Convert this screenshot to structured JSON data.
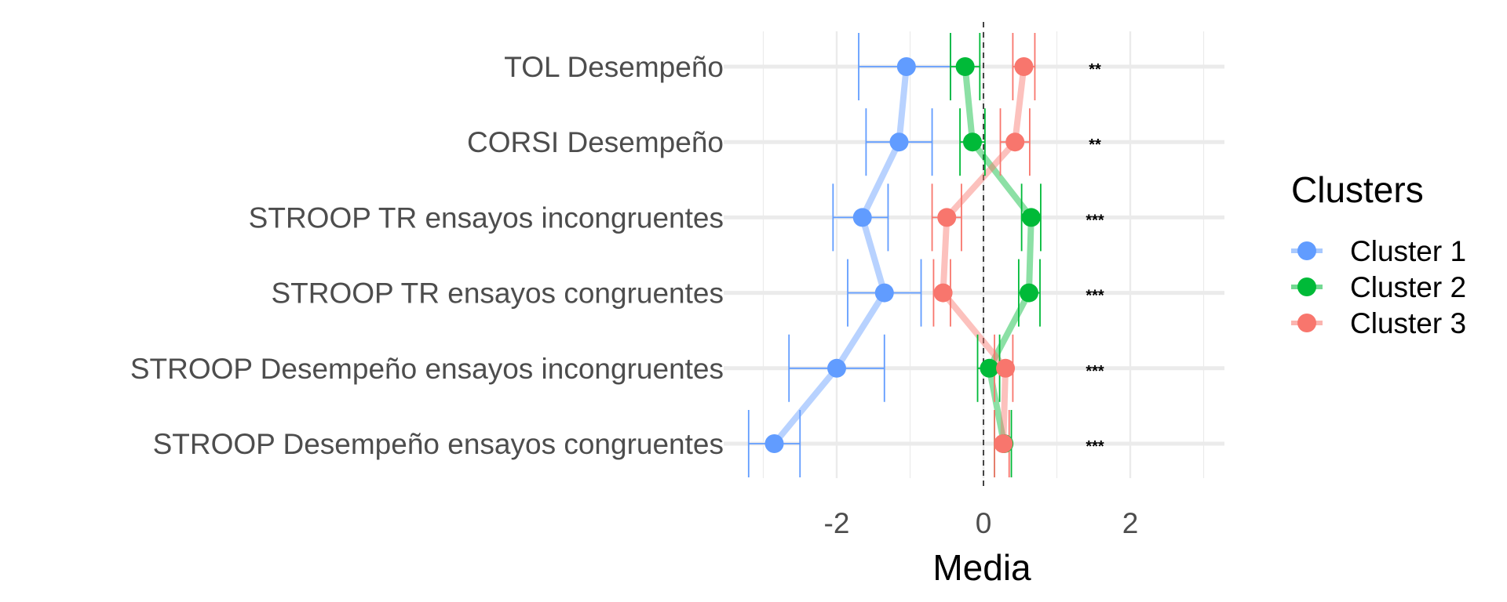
{
  "chart_data": {
    "type": "scatter",
    "title": "",
    "xlabel": "Media",
    "ylabel": "",
    "xlim": [
      -3.3,
      3.3
    ],
    "x_ticks": [
      "-2",
      "0",
      "2"
    ],
    "x_tick_values": [
      -2,
      0,
      2
    ],
    "reference_line": 0,
    "grid": true,
    "legend": {
      "title": "Clusters",
      "placement": "right"
    },
    "categories": [
      "TOL Desempeño",
      "CORSI Desempeño",
      "STROOP TR ensayos incongruentes",
      "STROOP TR ensayos congruentes",
      "STROOP Desempeño ensayos incongruentes",
      "STROOP Desempeño ensayos congruentes"
    ],
    "significance": [
      "**",
      "**",
      "***",
      "***",
      "***",
      "***"
    ],
    "series": [
      {
        "name": "Cluster 1",
        "color": "#619CFF",
        "values": [
          -1.05,
          -1.15,
          -1.65,
          -1.35,
          -2.0,
          -2.85
        ],
        "lower": [
          -1.7,
          -1.6,
          -2.05,
          -1.85,
          -2.65,
          -3.2
        ],
        "upper": [
          -0.45,
          -0.7,
          -1.3,
          -0.85,
          -1.35,
          -2.5
        ]
      },
      {
        "name": "Cluster 2",
        "color": "#00BA38",
        "values": [
          -0.25,
          -0.15,
          0.65,
          0.62,
          0.08,
          0.28
        ],
        "lower": [
          -0.45,
          -0.32,
          0.52,
          0.48,
          -0.08,
          0.15
        ],
        "upper": [
          -0.05,
          0.02,
          0.78,
          0.77,
          0.22,
          0.38
        ]
      },
      {
        "name": "Cluster 3",
        "color": "#F8766D",
        "values": [
          0.55,
          0.43,
          -0.5,
          -0.55,
          0.3,
          0.27
        ],
        "lower": [
          0.4,
          0.23,
          -0.7,
          -0.68,
          0.15,
          0.15
        ],
        "upper": [
          0.7,
          0.63,
          -0.3,
          -0.45,
          0.4,
          0.35
        ]
      }
    ]
  }
}
